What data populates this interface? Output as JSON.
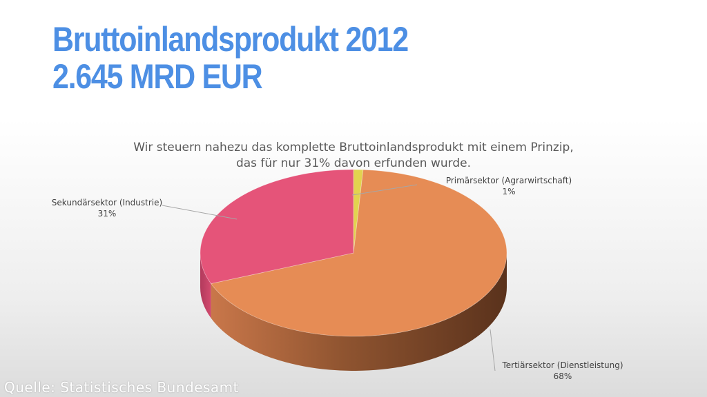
{
  "slide": {
    "title_line1": "Bruttoinlandsprodukt 2012",
    "title_line2": "2.645 MRD EUR",
    "source": "Quelle: Statistisches Bundesamt"
  },
  "chart_data": {
    "type": "pie",
    "title_line1": "Wir steuern nahezu das komplette Bruttoinlandsprodukt mit einem Prinzip,",
    "title_line2": "das für nur 31% davon erfunden wurde.",
    "style": "3d",
    "slices": [
      {
        "name": "Primärsektor (Agrarwirtschaft)",
        "value": 1,
        "label": "1%",
        "color": "#e2d34f"
      },
      {
        "name": "Tertiärsektor (Dienstleistung)",
        "value": 68,
        "label": "68%",
        "color": "#e68c55"
      },
      {
        "name": "Sekundärsektor (Industrie)",
        "value": 31,
        "label": "31%",
        "color": "#e55479"
      }
    ]
  }
}
